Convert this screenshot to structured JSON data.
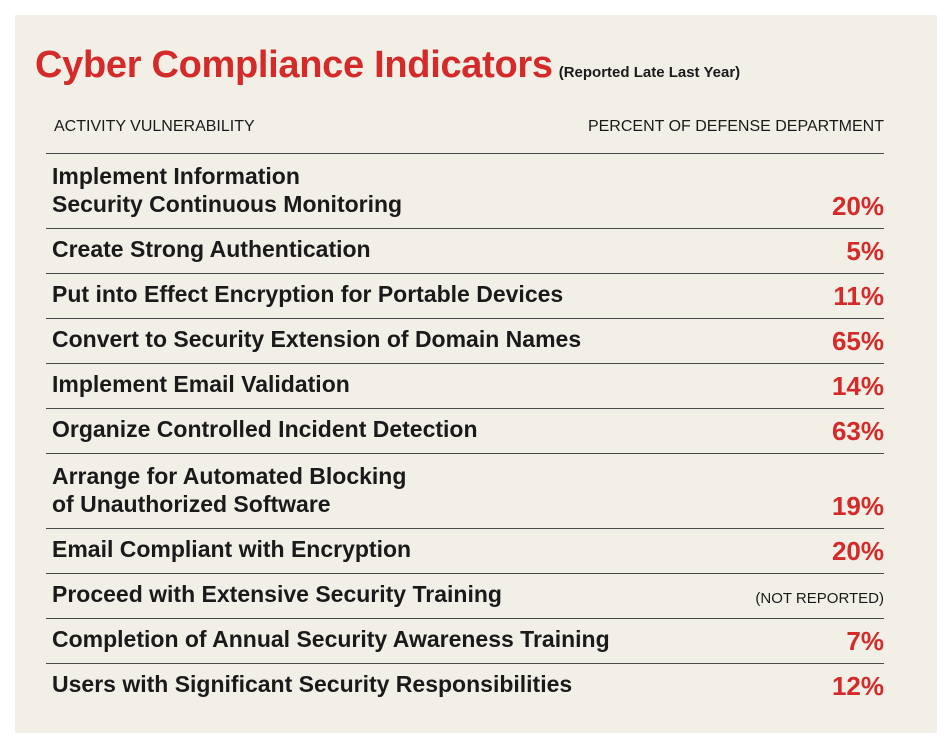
{
  "chart_data": {
    "type": "table",
    "title": "Cyber Compliance Indicators",
    "subtitle": "(Reported Late Last Year)",
    "columns": [
      "ACTIVITY VULNERABILITY",
      "PERCENT OF DEFENSE DEPARTMENT"
    ],
    "rows": [
      {
        "activity": [
          "Implement Information",
          "Security Continuous Monitoring"
        ],
        "percent": "20%",
        "value": 20
      },
      {
        "activity": [
          "Create Strong Authentication"
        ],
        "percent": "5%",
        "value": 5
      },
      {
        "activity": [
          "Put into Effect Encryption for Portable Devices"
        ],
        "percent": "11%",
        "value": 11
      },
      {
        "activity": [
          "Convert to Security Extension of Domain Names"
        ],
        "percent": "65%",
        "value": 65
      },
      {
        "activity": [
          "Implement Email Validation"
        ],
        "percent": "14%",
        "value": 14
      },
      {
        "activity": [
          "Organize Controlled Incident Detection"
        ],
        "percent": "63%",
        "value": 63
      },
      {
        "activity": [
          "Arrange for Automated Blocking",
          "of Unauthorized Software"
        ],
        "percent": "19%",
        "value": 19
      },
      {
        "activity": [
          "Email Compliant with Encryption"
        ],
        "percent": "20%",
        "value": 20
      },
      {
        "activity": [
          "Proceed with Extensive Security Training"
        ],
        "percent": "(NOT REPORTED)",
        "value": null
      },
      {
        "activity": [
          "Completion of Annual Security Awareness Training"
        ],
        "percent": "7%",
        "value": 7
      },
      {
        "activity": [
          "Users with Significant Security Responsibilities"
        ],
        "percent": "12%",
        "value": 12
      }
    ]
  },
  "colors": {
    "accent": "#d42a2a",
    "text": "#1a1a1a",
    "background": "#f2efe6",
    "rule": "#4a4a4a"
  }
}
